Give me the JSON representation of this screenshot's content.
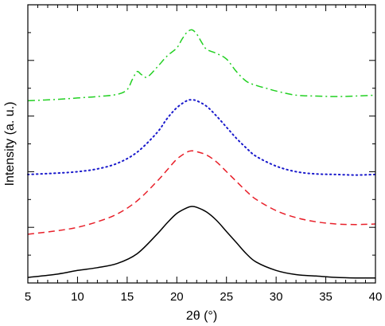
{
  "chart_data": {
    "type": "line",
    "title": "",
    "xlabel": "2θ (°)",
    "ylabel": "Intensity (a. u.)",
    "xlim": [
      5,
      40
    ],
    "ylim": [
      0,
      10
    ],
    "xticks": [
      5,
      10,
      15,
      20,
      25,
      30,
      35,
      40
    ],
    "xtick_labels": [
      "5",
      "10",
      "15",
      "20",
      "25",
      "30",
      "35",
      "40"
    ],
    "y_tick_labels_shown": false,
    "grid": false,
    "legend": "none",
    "series": [
      {
        "style": "solid",
        "color": "#000000",
        "x": [
          5,
          8,
          10,
          12,
          14,
          16,
          18,
          19,
          20,
          21,
          21.5,
          22,
          23,
          24,
          25,
          26,
          27,
          28,
          30,
          32,
          34,
          36,
          38,
          40
        ],
        "y": [
          0.2,
          0.32,
          0.45,
          0.55,
          0.7,
          1.05,
          1.75,
          2.15,
          2.5,
          2.7,
          2.75,
          2.72,
          2.55,
          2.25,
          1.85,
          1.45,
          1.05,
          0.75,
          0.45,
          0.3,
          0.25,
          0.2,
          0.18,
          0.18
        ]
      },
      {
        "style": "dashed",
        "color": "#e8202a",
        "x": [
          5,
          8,
          10,
          12,
          14,
          16,
          18,
          19,
          20,
          21,
          21.5,
          22,
          23,
          24,
          25,
          26,
          27,
          28,
          30,
          32,
          34,
          36,
          38,
          40
        ],
        "y": [
          1.75,
          1.88,
          2.0,
          2.2,
          2.48,
          2.95,
          3.65,
          4.05,
          4.45,
          4.7,
          4.75,
          4.72,
          4.6,
          4.35,
          4.0,
          3.65,
          3.3,
          3.0,
          2.6,
          2.35,
          2.2,
          2.12,
          2.1,
          2.12
        ]
      },
      {
        "style": "dotted",
        "color": "#1a1acc",
        "x": [
          5,
          8,
          10,
          12,
          14,
          16,
          18,
          19,
          20,
          21,
          21.5,
          22,
          23,
          24,
          25,
          26,
          27,
          28,
          30,
          32,
          34,
          36,
          38,
          40
        ],
        "y": [
          3.9,
          3.95,
          4.0,
          4.1,
          4.3,
          4.7,
          5.4,
          5.9,
          6.3,
          6.55,
          6.58,
          6.55,
          6.35,
          6.0,
          5.6,
          5.2,
          4.85,
          4.55,
          4.2,
          4.0,
          3.92,
          3.9,
          3.88,
          3.9
        ]
      },
      {
        "style": "dashdot",
        "color": "#22d022",
        "x": [
          5,
          8,
          10,
          12,
          14,
          15,
          15.5,
          16,
          16.4,
          17,
          18,
          19,
          20,
          20.5,
          21,
          21.5,
          22,
          22.5,
          23,
          24,
          25,
          26,
          27,
          28,
          29,
          30,
          32,
          34,
          36,
          38,
          40
        ],
        "y": [
          6.55,
          6.6,
          6.65,
          6.7,
          6.78,
          6.95,
          7.3,
          7.6,
          7.5,
          7.4,
          7.75,
          8.15,
          8.45,
          8.75,
          9.0,
          9.1,
          8.95,
          8.65,
          8.4,
          8.25,
          8.05,
          7.6,
          7.25,
          7.1,
          7.0,
          6.9,
          6.75,
          6.72,
          6.7,
          6.72,
          6.75
        ]
      }
    ]
  }
}
